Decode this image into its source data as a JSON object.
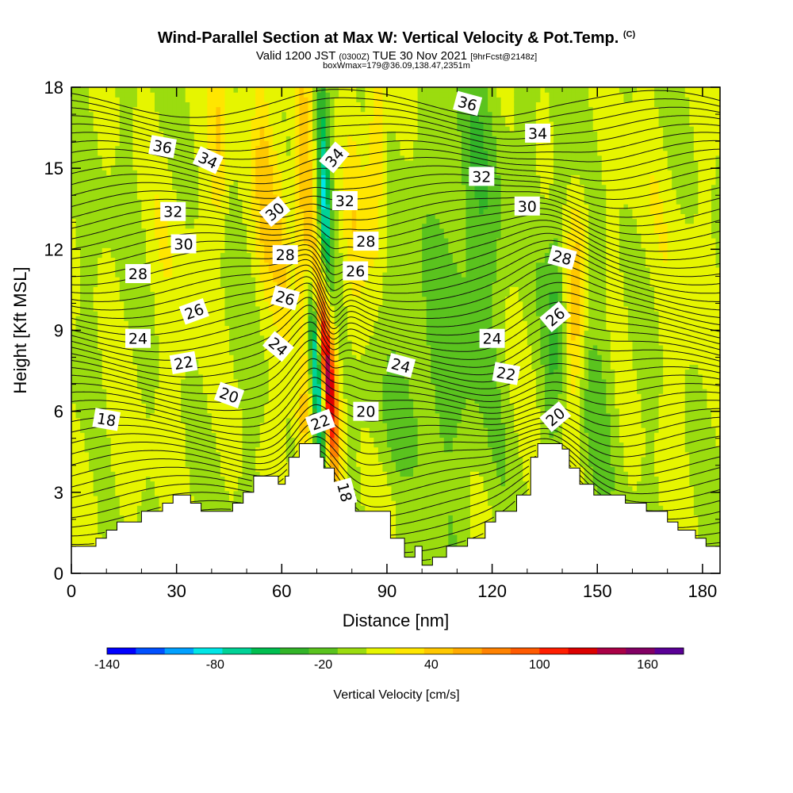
{
  "title": {
    "main": "Wind-Parallel Section at Max W: Vertical Velocity & Pot.Temp.",
    "copyright": "(C)",
    "valid_prefix": "Valid 1200 JST",
    "valid_utc": "(0300Z)",
    "valid_date": "TUE 30 Nov 2021",
    "forecast": "[9hrFcst@2148z]",
    "box_info": "boxWmax=179@36.09,138.47,2351m"
  },
  "chart_data": {
    "type": "heatmap",
    "xlabel": "Distance [nm]",
    "ylabel": "Height [Kft MSL]",
    "xlim": [
      0,
      185
    ],
    "ylim": [
      0,
      18
    ],
    "x_ticks": [
      0,
      30,
      60,
      90,
      120,
      150,
      180
    ],
    "y_ticks": [
      0,
      3,
      6,
      9,
      12,
      15,
      18
    ],
    "colorbar": {
      "label": "Vertical Velocity [cm/s]",
      "tick_labels": [
        "-140",
        "-80",
        "-20",
        "40",
        "100",
        "160"
      ],
      "tick_values": [
        -140,
        -80,
        -20,
        40,
        100,
        160
      ],
      "min": -140,
      "max": 180,
      "colors": [
        "#0000ff",
        "#0050ff",
        "#00a0ff",
        "#00e6e6",
        "#00d296",
        "#00be50",
        "#32b428",
        "#5ac31e",
        "#9bdc0f",
        "#e6f500",
        "#ffe600",
        "#ffc800",
        "#ffaa00",
        "#ff8200",
        "#ff5a00",
        "#ff1e00",
        "#dc0000",
        "#aa0046",
        "#820064",
        "#5a0096"
      ]
    },
    "terrain_kft": [
      [
        0,
        1.0
      ],
      [
        7,
        1.0
      ],
      [
        7,
        1.3
      ],
      [
        10,
        1.3
      ],
      [
        10,
        1.6
      ],
      [
        13,
        1.6
      ],
      [
        13,
        1.9
      ],
      [
        20,
        1.9
      ],
      [
        20,
        2.3
      ],
      [
        26,
        2.3
      ],
      [
        26,
        2.6
      ],
      [
        29,
        2.6
      ],
      [
        29,
        2.9
      ],
      [
        34,
        2.9
      ],
      [
        34,
        2.6
      ],
      [
        37,
        2.6
      ],
      [
        37,
        2.3
      ],
      [
        46,
        2.3
      ],
      [
        46,
        2.6
      ],
      [
        49,
        2.6
      ],
      [
        49,
        3.0
      ],
      [
        52,
        3.0
      ],
      [
        52,
        3.6
      ],
      [
        59,
        3.6
      ],
      [
        59,
        3.3
      ],
      [
        61,
        3.3
      ],
      [
        61,
        3.6
      ],
      [
        62,
        3.6
      ],
      [
        62,
        4.3
      ],
      [
        65,
        4.3
      ],
      [
        65,
        4.8
      ],
      [
        71,
        4.8
      ],
      [
        71,
        4.3
      ],
      [
        72,
        4.3
      ],
      [
        72,
        3.9
      ],
      [
        75,
        3.9
      ],
      [
        75,
        3.3
      ],
      [
        77,
        3.3
      ],
      [
        77,
        2.9
      ],
      [
        81,
        2.9
      ],
      [
        81,
        2.3
      ],
      [
        91,
        2.3
      ],
      [
        91,
        1.3
      ],
      [
        95,
        1.3
      ],
      [
        95,
        0.6
      ],
      [
        98,
        0.6
      ],
      [
        98,
        1.0
      ],
      [
        100,
        1.0
      ],
      [
        100,
        0.3
      ],
      [
        103,
        0.3
      ],
      [
        103,
        0.6
      ],
      [
        107,
        0.6
      ],
      [
        107,
        1.0
      ],
      [
        113,
        1.0
      ],
      [
        113,
        1.3
      ],
      [
        118,
        1.3
      ],
      [
        118,
        1.9
      ],
      [
        121,
        1.9
      ],
      [
        121,
        2.3
      ],
      [
        127,
        2.3
      ],
      [
        127,
        2.9
      ],
      [
        131,
        2.9
      ],
      [
        131,
        4.3
      ],
      [
        133,
        4.3
      ],
      [
        133,
        4.8
      ],
      [
        140,
        4.8
      ],
      [
        140,
        4.6
      ],
      [
        142,
        4.6
      ],
      [
        142,
        3.9
      ],
      [
        145,
        3.9
      ],
      [
        145,
        3.3
      ],
      [
        149,
        3.3
      ],
      [
        149,
        2.9
      ],
      [
        158,
        2.9
      ],
      [
        158,
        2.6
      ],
      [
        164,
        2.6
      ],
      [
        164,
        2.3
      ],
      [
        170,
        2.3
      ],
      [
        170,
        1.9
      ],
      [
        173,
        1.9
      ],
      [
        173,
        1.6
      ],
      [
        178,
        1.6
      ],
      [
        178,
        1.3
      ],
      [
        181,
        1.3
      ],
      [
        181,
        1.0
      ],
      [
        185,
        1.0
      ]
    ],
    "velocity_features": [
      {
        "x": 73,
        "y": 7.5,
        "sx": 1.6,
        "sy": 2.6,
        "value": 150,
        "tilt": -0.55
      },
      {
        "x": 70,
        "y": 7.5,
        "sx": 1.4,
        "sy": 2.5,
        "value": -130,
        "tilt": -0.55
      },
      {
        "x": 72,
        "y": 14,
        "sx": 1.3,
        "sy": 3.0,
        "value": -80,
        "tilt": -0.2
      },
      {
        "x": 67,
        "y": 13,
        "sx": 2.0,
        "sy": 4.0,
        "value": 50,
        "tilt": -0.2
      },
      {
        "x": 60,
        "y": 12,
        "sx": 2.0,
        "sy": 4.0,
        "value": 35,
        "tilt": -0.3
      },
      {
        "x": 55,
        "y": 15,
        "sx": 2.0,
        "sy": 3.0,
        "value": 40,
        "tilt": -0.3
      },
      {
        "x": 42,
        "y": 16,
        "sx": 2.0,
        "sy": 2.5,
        "value": 35,
        "tilt": 0
      },
      {
        "x": 66,
        "y": 5.5,
        "sx": 1.5,
        "sy": 1.5,
        "value": 45,
        "tilt": 0
      },
      {
        "x": 87,
        "y": 16,
        "sx": 2.0,
        "sy": 3.0,
        "value": 40,
        "tilt": 0
      },
      {
        "x": 80,
        "y": 12,
        "sx": 2.5,
        "sy": 3.0,
        "value": 25,
        "tilt": 0
      },
      {
        "x": 144,
        "y": 10,
        "sx": 2.0,
        "sy": 3.0,
        "value": 45,
        "tilt": 0.15
      },
      {
        "x": 138,
        "y": 10,
        "sx": 2.0,
        "sy": 4.0,
        "value": -30,
        "tilt": 0.15
      },
      {
        "x": 160,
        "y": 13,
        "sx": 5.0,
        "sy": 3.0,
        "value": 10,
        "tilt": 0
      },
      {
        "x": 30,
        "y": 10,
        "sx": 6.0,
        "sy": 5.0,
        "value": 10,
        "tilt": 0
      },
      {
        "x": 10,
        "y": 4,
        "sx": 6.0,
        "sy": 2.0,
        "value": 10,
        "tilt": 0
      },
      {
        "x": 100,
        "y": 6,
        "sx": 8.0,
        "sy": 4.0,
        "value": -20,
        "tilt": 0
      },
      {
        "x": 115,
        "y": 13,
        "sx": 6.0,
        "sy": 5.0,
        "value": -25,
        "tilt": 0
      },
      {
        "x": 150,
        "y": 7,
        "sx": 5.0,
        "sy": 3.0,
        "value": -15,
        "tilt": 0
      },
      {
        "x": 175,
        "y": 10,
        "sx": 5.0,
        "sy": 5.0,
        "value": 10,
        "tilt": 0
      },
      {
        "x": 95,
        "y": 3,
        "sx": 5.0,
        "sy": 1.0,
        "value": 15,
        "tilt": 0
      }
    ],
    "theta_levels": [
      18,
      19,
      20,
      21,
      22,
      23,
      24,
      25,
      26,
      27,
      28,
      29,
      30,
      31,
      32,
      33,
      34,
      35,
      36,
      37
    ],
    "contour_labels": [
      {
        "text": "36",
        "x": 26,
        "y": 15.8,
        "angle": -10
      },
      {
        "text": "34",
        "x": 39,
        "y": 15.3,
        "angle": -25
      },
      {
        "text": "32",
        "x": 29,
        "y": 13.4,
        "angle": 0
      },
      {
        "text": "30",
        "x": 32,
        "y": 12.2,
        "angle": 0
      },
      {
        "text": "28",
        "x": 19,
        "y": 11.1,
        "angle": 0
      },
      {
        "text": "26",
        "x": 35,
        "y": 9.7,
        "angle": 20
      },
      {
        "text": "24",
        "x": 19,
        "y": 8.7,
        "angle": 0
      },
      {
        "text": "22",
        "x": 32,
        "y": 7.8,
        "angle": 10
      },
      {
        "text": "20",
        "x": 45,
        "y": 6.6,
        "angle": -20
      },
      {
        "text": "18",
        "x": 10,
        "y": 5.7,
        "angle": -10
      },
      {
        "text": "30",
        "x": 58,
        "y": 13.4,
        "angle": 40
      },
      {
        "text": "28",
        "x": 61,
        "y": 11.8,
        "angle": 0
      },
      {
        "text": "26",
        "x": 61,
        "y": 10.2,
        "angle": -15
      },
      {
        "text": "24",
        "x": 59,
        "y": 8.4,
        "angle": -40
      },
      {
        "text": "22",
        "x": 71,
        "y": 5.6,
        "angle": 20
      },
      {
        "text": "34",
        "x": 75,
        "y": 15.4,
        "angle": 50
      },
      {
        "text": "32",
        "x": 78,
        "y": 13.8,
        "angle": 0
      },
      {
        "text": "28",
        "x": 84,
        "y": 12.3,
        "angle": 0
      },
      {
        "text": "26",
        "x": 81,
        "y": 11.2,
        "angle": 0
      },
      {
        "text": "24",
        "x": 94,
        "y": 7.7,
        "angle": -15
      },
      {
        "text": "20",
        "x": 84,
        "y": 6.0,
        "angle": 0
      },
      {
        "text": "18",
        "x": 78,
        "y": 3.0,
        "angle": -75
      },
      {
        "text": "36",
        "x": 113,
        "y": 17.4,
        "angle": -15
      },
      {
        "text": "34",
        "x": 133,
        "y": 16.3,
        "angle": 0
      },
      {
        "text": "32",
        "x": 117,
        "y": 14.7,
        "angle": 0
      },
      {
        "text": "30",
        "x": 130,
        "y": 13.6,
        "angle": 0
      },
      {
        "text": "28",
        "x": 140,
        "y": 11.7,
        "angle": -15
      },
      {
        "text": "26",
        "x": 138,
        "y": 9.5,
        "angle": 40
      },
      {
        "text": "24",
        "x": 120,
        "y": 8.7,
        "angle": 0
      },
      {
        "text": "22",
        "x": 124,
        "y": 7.4,
        "angle": -10
      },
      {
        "text": "20",
        "x": 138,
        "y": 5.8,
        "angle": 40
      }
    ]
  }
}
